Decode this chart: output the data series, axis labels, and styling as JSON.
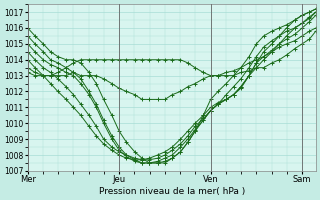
{
  "xlabel": "Pression niveau de la mer( hPa )",
  "bg_color": "#c5ece4",
  "plot_bg_color": "#d8f5ef",
  "grid_color": "#a8ddd6",
  "line_color": "#1a6b1a",
  "ylim": [
    1007,
    1017.5
  ],
  "xlim": [
    0,
    3.15
  ],
  "yticks": [
    1007,
    1008,
    1009,
    1010,
    1011,
    1012,
    1013,
    1014,
    1015,
    1016,
    1017
  ],
  "day_positions": [
    0,
    1,
    2,
    3
  ],
  "day_labels": [
    "Mer",
    "Jeu",
    "Ven",
    "Sam"
  ],
  "lines": [
    {
      "x": [
        0.0,
        0.08,
        0.17,
        0.25,
        0.33,
        0.42,
        0.5,
        0.58,
        0.67,
        0.75,
        0.83,
        0.92,
        1.0,
        1.08,
        1.17,
        1.25,
        1.33,
        1.42,
        1.5,
        1.58,
        1.67,
        1.75,
        1.83,
        1.92,
        2.0,
        2.08,
        2.17,
        2.25,
        2.33,
        2.42,
        2.5,
        2.58,
        2.67,
        2.75,
        2.83,
        2.92,
        3.0,
        3.08,
        3.15
      ],
      "y": [
        1016.0,
        1015.5,
        1015.0,
        1014.5,
        1014.2,
        1014.0,
        1014.0,
        1013.8,
        1013.2,
        1012.5,
        1011.5,
        1010.5,
        1009.5,
        1008.8,
        1008.2,
        1007.8,
        1007.5,
        1007.5,
        1007.5,
        1007.8,
        1008.2,
        1008.8,
        1009.5,
        1010.5,
        1011.5,
        1012.0,
        1012.5,
        1013.0,
        1013.5,
        1014.2,
        1015.0,
        1015.5,
        1015.8,
        1016.0,
        1016.2,
        1016.5,
        1016.8,
        1017.0,
        1017.2
      ]
    },
    {
      "x": [
        0.0,
        0.08,
        0.17,
        0.25,
        0.33,
        0.42,
        0.5,
        0.58,
        0.67,
        0.75,
        0.83,
        0.92,
        1.0,
        1.08,
        1.17,
        1.25,
        1.33,
        1.42,
        1.5,
        1.58,
        1.67,
        1.75,
        1.83,
        1.92,
        2.0,
        2.08,
        2.17,
        2.25,
        2.33,
        2.42,
        2.5,
        2.58,
        2.67,
        2.75,
        2.83,
        2.92,
        3.0,
        3.08,
        3.15
      ],
      "y": [
        1015.5,
        1015.0,
        1014.5,
        1014.0,
        1013.8,
        1013.5,
        1013.2,
        1012.8,
        1012.0,
        1011.2,
        1010.2,
        1009.2,
        1008.5,
        1008.0,
        1007.7,
        1007.5,
        1007.5,
        1007.5,
        1007.6,
        1007.8,
        1008.2,
        1008.8,
        1009.5,
        1010.2,
        1010.8,
        1011.2,
        1011.8,
        1012.3,
        1012.8,
        1013.5,
        1014.2,
        1014.8,
        1015.2,
        1015.5,
        1015.8,
        1016.0,
        1016.3,
        1016.7,
        1017.0
      ]
    },
    {
      "x": [
        0.0,
        0.08,
        0.17,
        0.25,
        0.33,
        0.42,
        0.5,
        0.58,
        0.67,
        0.75,
        0.83,
        0.92,
        1.0,
        1.08,
        1.17,
        1.25,
        1.33,
        1.42,
        1.5,
        1.58,
        1.67,
        1.75,
        1.83,
        1.92,
        2.0,
        2.08,
        2.17,
        2.25,
        2.33,
        2.42,
        2.5,
        2.58,
        2.67,
        2.75,
        2.83,
        2.92,
        3.0,
        3.08,
        3.15
      ],
      "y": [
        1015.0,
        1014.5,
        1014.0,
        1013.7,
        1013.5,
        1013.2,
        1013.0,
        1012.5,
        1011.8,
        1011.0,
        1010.0,
        1009.0,
        1008.3,
        1007.9,
        1007.6,
        1007.5,
        1007.5,
        1007.6,
        1007.8,
        1008.0,
        1008.5,
        1009.0,
        1009.6,
        1010.2,
        1010.8,
        1011.2,
        1011.5,
        1011.8,
        1012.2,
        1013.0,
        1013.8,
        1014.2,
        1014.6,
        1015.0,
        1015.3,
        1015.6,
        1016.0,
        1016.4,
        1016.8
      ]
    },
    {
      "x": [
        0.0,
        0.08,
        0.17,
        0.25,
        0.33,
        0.42,
        0.5,
        0.58,
        0.67,
        0.75,
        0.83,
        0.92,
        1.0,
        1.08,
        1.17,
        1.25,
        1.33,
        1.42,
        1.5,
        1.58,
        1.67,
        1.75,
        1.83,
        1.92,
        2.0,
        2.08,
        2.17,
        2.25,
        2.33,
        2.42,
        2.5,
        2.58,
        2.67,
        2.75,
        2.83,
        2.92,
        3.0,
        3.08,
        3.15
      ],
      "y": [
        1014.5,
        1014.0,
        1013.5,
        1013.2,
        1012.8,
        1012.3,
        1011.8,
        1011.2,
        1010.5,
        1009.8,
        1009.0,
        1008.5,
        1008.2,
        1008.0,
        1007.8,
        1007.7,
        1007.7,
        1007.8,
        1008.0,
        1008.3,
        1008.7,
        1009.2,
        1009.8,
        1010.3,
        1010.8,
        1011.2,
        1011.5,
        1011.8,
        1012.3,
        1013.0,
        1013.8,
        1014.5,
        1015.0,
        1015.5,
        1016.0,
        1016.5,
        1016.8,
        1017.0,
        1017.2
      ]
    },
    {
      "x": [
        0.0,
        0.08,
        0.17,
        0.25,
        0.33,
        0.42,
        0.5,
        0.58,
        0.67,
        0.75,
        0.83,
        0.92,
        1.0,
        1.08,
        1.17,
        1.25,
        1.33,
        1.42,
        1.5,
        1.58,
        1.67,
        1.75,
        1.83,
        1.92,
        2.0,
        2.08,
        2.17,
        2.25,
        2.33,
        2.42,
        2.5,
        2.58,
        2.67,
        2.75,
        2.83,
        2.92,
        3.0,
        3.08,
        3.15
      ],
      "y": [
        1014.0,
        1013.5,
        1013.0,
        1012.5,
        1012.0,
        1011.5,
        1011.0,
        1010.5,
        1009.8,
        1009.2,
        1008.7,
        1008.3,
        1008.0,
        1007.8,
        1007.7,
        1007.7,
        1007.8,
        1008.0,
        1008.2,
        1008.5,
        1009.0,
        1009.5,
        1010.0,
        1010.5,
        1011.0,
        1011.3,
        1011.5,
        1011.8,
        1012.3,
        1013.0,
        1013.5,
        1014.0,
        1014.5,
        1015.0,
        1015.5,
        1016.0,
        1016.3,
        1016.6,
        1017.0
      ]
    },
    {
      "x": [
        0.0,
        0.08,
        0.17,
        0.25,
        0.33,
        0.42,
        0.5,
        0.58,
        0.67,
        0.75,
        0.83,
        0.92,
        1.0,
        1.08,
        1.17,
        1.25,
        1.33,
        1.42,
        1.5,
        1.58,
        1.67,
        1.75,
        1.83,
        1.92,
        2.0,
        2.08,
        2.17,
        2.25,
        2.33,
        2.42,
        2.5,
        2.58,
        2.67,
        2.75,
        2.83,
        2.92,
        3.0,
        3.08,
        3.15
      ],
      "y": [
        1013.5,
        1013.2,
        1013.0,
        1013.0,
        1013.0,
        1013.0,
        1013.2,
        1013.0,
        1013.0,
        1013.0,
        1012.8,
        1012.5,
        1012.2,
        1012.0,
        1011.8,
        1011.5,
        1011.5,
        1011.5,
        1011.5,
        1011.8,
        1012.0,
        1012.3,
        1012.5,
        1012.8,
        1013.0,
        1013.0,
        1013.2,
        1013.3,
        1013.5,
        1013.8,
        1014.0,
        1014.2,
        1014.5,
        1014.8,
        1015.0,
        1015.2,
        1015.5,
        1015.8,
        1016.0
      ]
    },
    {
      "x": [
        0.0,
        0.08,
        0.17,
        0.25,
        0.33,
        0.42,
        0.5,
        0.58,
        0.67,
        0.75,
        0.83,
        0.92,
        1.0,
        1.08,
        1.17,
        1.25,
        1.33,
        1.42,
        1.5,
        1.58,
        1.67,
        1.75,
        1.83,
        1.92,
        2.0,
        2.08,
        2.17,
        2.25,
        2.33,
        2.42,
        2.5,
        2.58,
        2.67,
        2.75,
        2.83,
        2.92,
        3.0,
        3.08,
        3.15
      ],
      "y": [
        1013.2,
        1013.0,
        1013.0,
        1013.0,
        1013.2,
        1013.5,
        1013.8,
        1014.0,
        1014.0,
        1014.0,
        1014.0,
        1014.0,
        1014.0,
        1014.0,
        1014.0,
        1014.0,
        1014.0,
        1014.0,
        1014.0,
        1014.0,
        1014.0,
        1013.8,
        1013.5,
        1013.2,
        1013.0,
        1013.0,
        1013.0,
        1013.0,
        1013.2,
        1013.3,
        1013.5,
        1013.5,
        1013.8,
        1014.0,
        1014.3,
        1014.7,
        1015.0,
        1015.3,
        1015.8
      ]
    }
  ]
}
